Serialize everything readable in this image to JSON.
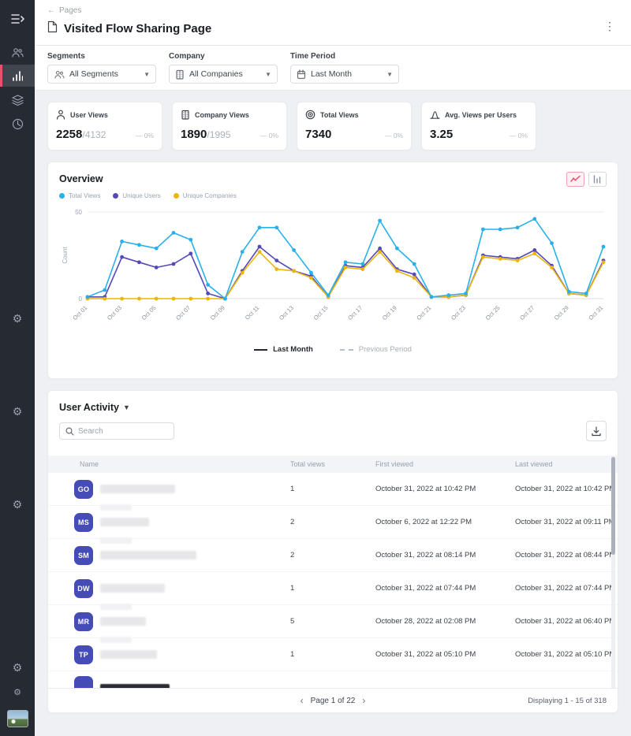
{
  "colors": {
    "accent_pink": "#e8516d",
    "avatar_indigo": "#454cb5",
    "sidebar_bg": "#262b33",
    "series_total_views": "#29b0ea",
    "series_unique_users": "#5348b8",
    "series_unique_companies": "#edb50a"
  },
  "sidebar": {
    "icons": [
      "menu-toggle",
      "users",
      "bar-chart-active",
      "layers",
      "clock",
      "gear",
      "gear",
      "gear",
      "gear",
      "gear-small",
      "user-avatar-photo"
    ]
  },
  "header": {
    "back_arrow": "←",
    "breadcrumb": "Pages",
    "title": "Visited Flow Sharing Page",
    "kebab": "⋮"
  },
  "filters": {
    "segments": {
      "label": "Segments",
      "value": "All Segments"
    },
    "company": {
      "label": "Company",
      "value": "All Companies"
    },
    "time_period": {
      "label": "Time Period",
      "value": "Last Month"
    }
  },
  "stats": {
    "cards": [
      {
        "label": "User Views",
        "value": "2258",
        "total": "/4132",
        "delta": "— 0%"
      },
      {
        "label": "Company Views",
        "value": "1890",
        "total": "/1995",
        "delta": "— 0%"
      },
      {
        "label": "Total Views",
        "value": "7340",
        "total": "",
        "delta": "— 0%"
      },
      {
        "label": "Avg. Views per Users",
        "value": "3.25",
        "total": "",
        "delta": "— 0%"
      }
    ]
  },
  "overview": {
    "title": "Overview",
    "period_legend": {
      "current": "Last Month",
      "previous": "Previous Period"
    }
  },
  "chart_data": {
    "type": "line",
    "title": "Overview",
    "ylabel": "Count",
    "ylim": [
      0,
      50
    ],
    "grid": "horizontal-top-and-baseline",
    "legend_position": "top-left",
    "x_tick_every": 2,
    "x": [
      "Oct 01",
      "Oct 02",
      "Oct 03",
      "Oct 04",
      "Oct 05",
      "Oct 06",
      "Oct 07",
      "Oct 08",
      "Oct 09",
      "Oct 10",
      "Oct 11",
      "Oct 12",
      "Oct 13",
      "Oct 14",
      "Oct 15",
      "Oct 16",
      "Oct 17",
      "Oct 18",
      "Oct 19",
      "Oct 20",
      "Oct 21",
      "Oct 22",
      "Oct 23",
      "Oct 24",
      "Oct 25",
      "Oct 26",
      "Oct 27",
      "Oct 28",
      "Oct 29",
      "Oct 30",
      "Oct 31"
    ],
    "series": [
      {
        "name": "Total Views",
        "color": "#29b0ea",
        "values": [
          1,
          5,
          33,
          31,
          29,
          38,
          34,
          8,
          0,
          27,
          41,
          41,
          28,
          15,
          2,
          21,
          20,
          45,
          29,
          20,
          1,
          2,
          3,
          40,
          40,
          41,
          46,
          32,
          4,
          3,
          30
        ]
      },
      {
        "name": "Unique Users",
        "color": "#5348b8",
        "values": [
          1,
          1,
          24,
          21,
          18,
          20,
          26,
          3,
          0,
          16,
          30,
          22,
          16,
          13,
          1,
          19,
          18,
          29,
          17,
          14,
          1,
          1,
          2,
          25,
          24,
          23,
          28,
          19,
          3,
          2,
          22
        ]
      },
      {
        "name": "Unique Companies",
        "color": "#edb50a",
        "values": [
          0,
          0,
          0,
          0,
          0,
          0,
          0,
          0,
          0,
          15,
          27,
          17,
          16,
          12,
          1,
          18,
          17,
          27,
          16,
          12,
          1,
          1,
          2,
          24,
          23,
          22,
          26,
          18,
          3,
          2,
          21
        ]
      }
    ]
  },
  "activity": {
    "title": "User Activity",
    "search_placeholder": "Search",
    "columns": [
      "Name",
      "Total views",
      "First viewed",
      "Last viewed"
    ],
    "rows": [
      {
        "initials": "GO",
        "views": "1",
        "first": "October 31, 2022 at 10:42 PM",
        "last": "October 31, 2022 at 10:42 PM"
      },
      {
        "initials": "MS",
        "views": "2",
        "first": "October 6, 2022 at 12:22 PM",
        "last": "October 31, 2022 at 09:11 PM"
      },
      {
        "initials": "SM",
        "views": "2",
        "first": "October 31, 2022 at 08:14 PM",
        "last": "October 31, 2022 at 08:44 PM"
      },
      {
        "initials": "DW",
        "views": "1",
        "first": "October 31, 2022 at 07:44 PM",
        "last": "October 31, 2022 at 07:44 PM"
      },
      {
        "initials": "MR",
        "views": "5",
        "first": "October 28, 2022 at 02:08 PM",
        "last": "October 31, 2022 at 06:40 PM"
      },
      {
        "initials": "TP",
        "views": "1",
        "first": "October 31, 2022 at 05:10 PM",
        "last": "October 31, 2022 at 05:10 PM"
      }
    ],
    "pagination": {
      "prev": "‹",
      "page_label": "Page 1 of 22",
      "next": "›",
      "displaying": "Displaying 1 - 15 of 318"
    }
  }
}
